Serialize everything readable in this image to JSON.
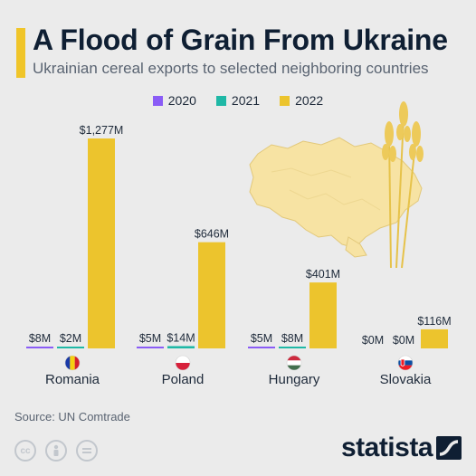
{
  "header": {
    "title": "A Flood of Grain From Ukraine",
    "subtitle": "Ukrainian cereal exports to selected neighboring countries"
  },
  "footer": {
    "source": "Source: UN Comtrade",
    "brand": "statista"
  },
  "colors": {
    "y2020": "#8a5cf6",
    "y2021": "#1fb8a6",
    "y2022": "#ecc42d",
    "map": "#f7e3a3"
  },
  "icons": [
    "cc-icon",
    "person-icon",
    "equals-icon",
    "statista-logo-icon",
    "wheat-icon",
    "ukraine-map-icon"
  ],
  "chart_data": {
    "type": "bar",
    "categories": [
      "Romania",
      "Poland",
      "Hungary",
      "Slovakia"
    ],
    "series": [
      {
        "name": "2020",
        "values": [
          8,
          5,
          5,
          0
        ],
        "labels": [
          "$8M",
          "$5M",
          "$5M",
          "$0M"
        ]
      },
      {
        "name": "2021",
        "values": [
          2,
          14,
          8,
          0
        ],
        "labels": [
          "$2M",
          "$14M",
          "$8M",
          "$0M"
        ]
      },
      {
        "name": "2022",
        "values": [
          1277,
          646,
          401,
          116
        ],
        "labels": [
          "$1,277M",
          "$646M",
          "$401M",
          "$116M"
        ]
      }
    ],
    "title": "A Flood of Grain From Ukraine",
    "xlabel": "",
    "ylabel": "",
    "ylim": [
      0,
      1277
    ],
    "legend": "top-center",
    "grid": false
  }
}
